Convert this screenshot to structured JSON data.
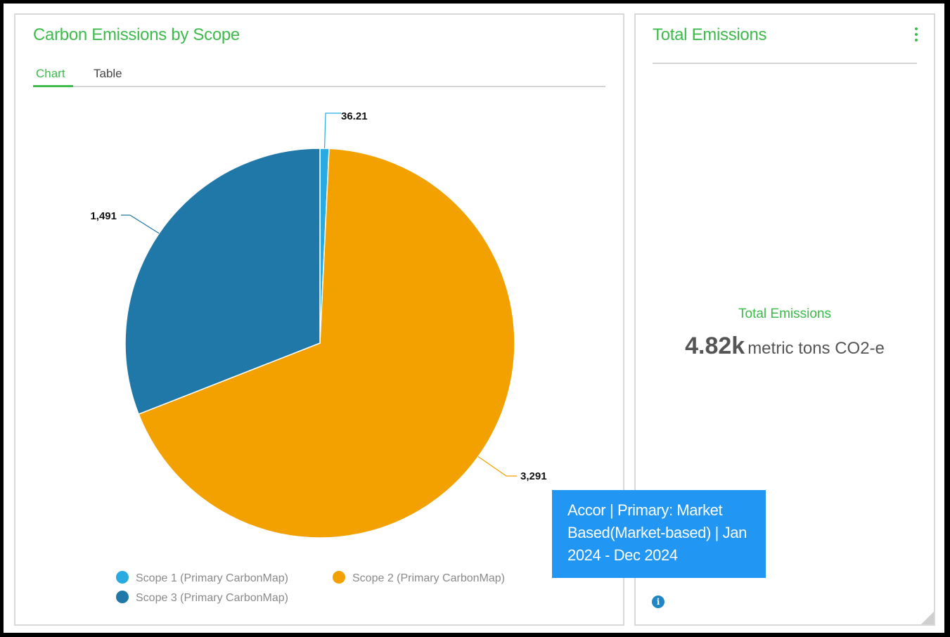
{
  "left_card": {
    "title": "Carbon Emissions by Scope",
    "tabs": [
      {
        "label": "Chart",
        "active": true
      },
      {
        "label": "Table",
        "active": false
      }
    ]
  },
  "chart_data": {
    "type": "pie",
    "title": "",
    "slices": [
      {
        "name": "Scope 1 (Primary CarbonMap)",
        "value": 36.21,
        "label": "36.21",
        "color": "#29abe2"
      },
      {
        "name": "Scope 2 (Primary CarbonMap)",
        "value": 3291,
        "label": "3,291",
        "color": "#f2a100"
      },
      {
        "name": "Scope 3 (Primary CarbonMap)",
        "value": 1491,
        "label": "1,491",
        "color": "#1f78a8"
      }
    ],
    "legend_position": "bottom"
  },
  "right_card": {
    "title": "Total Emissions",
    "kpi_label": "Total Emissions",
    "kpi_value": "4.82k",
    "kpi_unit": "metric tons CO2-e",
    "info_icon": "info-icon",
    "menu_icon": "kebab-menu-icon"
  },
  "tooltip": {
    "text_lines": [
      "Accor | Primary: Market",
      "Based(Market-based) | Jan",
      "2024 - Dec 2024"
    ]
  },
  "colors": {
    "accent": "#3dbb4b",
    "tooltip_bg": "#2196f3"
  }
}
